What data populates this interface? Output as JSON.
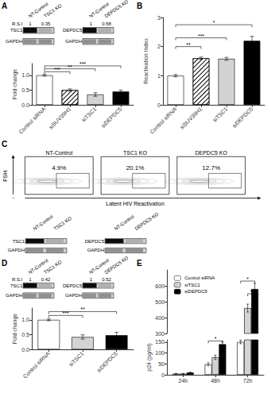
{
  "chart_data": [
    {
      "type": "blot",
      "title": "A",
      "categories": [
        "NT-Control",
        "TSC1 KO",
        "NT-Control",
        "DEPDC5 KO"
      ],
      "values": [
        1,
        0.35,
        1,
        0.58
      ],
      "ylabel": "R.S.I",
      "annotations": [
        "TSC1",
        "GAPDH",
        "DEPDC5",
        "GAPDH"
      ]
    },
    {
      "type": "bar",
      "categories": [
        "Control siRNA",
        "siSUV39H1",
        "siTSC1",
        "siDEPDC5"
      ],
      "values": [
        1.0,
        0.5,
        0.35,
        0.45
      ],
      "errors": [
        0.03,
        0.04,
        0.06,
        0.05
      ],
      "colors": [
        "white",
        "none",
        "lightgray",
        "black"
      ],
      "ylabel": "Fold change",
      "ylim": [
        0,
        1.4
      ],
      "yticks": [
        {
          "value": 0,
          "label": "0.0"
        },
        0.5,
        {
          "value": 1,
          "label": "1.0"
        }
      ],
      "grid": false,
      "annotations": [
        {
          "text": "***",
          "x1": "Control siRNA",
          "x2": "siSUV39H1",
          "y": 1.12
        },
        {
          "text": "**",
          "x1": "Control siRNA",
          "x2": "siTSC1",
          "y": 1.22
        },
        {
          "text": "***",
          "x1": "Control siRNA",
          "x2": "siDEPDC5",
          "y": 1.32
        }
      ]
    },
    {
      "type": "bar",
      "title": "B",
      "categories": [
        "Control siRNA",
        "siSUV39H1",
        "siTSC1",
        "siDEPDC5"
      ],
      "values": [
        1.0,
        1.6,
        1.58,
        2.2
      ],
      "errors": [
        0.04,
        0.04,
        0.05,
        0.15
      ],
      "colors": [
        "white",
        "none",
        "lightgray",
        "black"
      ],
      "ylabel": "Reactivation Index",
      "ylim": [
        0,
        3.0
      ],
      "yticks": [
        0,
        1,
        2,
        3
      ],
      "grid": false,
      "annotations": [
        {
          "text": "**",
          "x1": "Control siRNA",
          "x2": "siSUV39H1",
          "y": 2.0
        },
        {
          "text": "***",
          "x1": "Control siRNA",
          "x2": "siTSC1",
          "y": 2.3
        },
        {
          "text": "*",
          "x1": "Control siRNA",
          "x2": "siDEPDC5",
          "y": 2.75
        }
      ]
    },
    {
      "type": "flow",
      "title": "C",
      "categories": [
        "NT-Control",
        "TSC1 KO",
        "DEPDC5 KO"
      ],
      "annotations": [
        "4.9%",
        "20.1%",
        "12.7%",
        "-"
      ],
      "xlabel": "Latent HIV Reactivation",
      "ylabel": "FSH"
    },
    {
      "type": "blot",
      "categories": [
        "NT-Control",
        "TSC1 KO",
        "NT-Control",
        "DEPDC5 KO"
      ],
      "annotations": [
        "TSC1",
        "GAPDH",
        "DEPDC5",
        "GAPDH"
      ]
    },
    {
      "type": "blot",
      "title": "D",
      "categories": [
        "NT-Control",
        "TSC1 KO",
        "NT-Control",
        "DEPDC5 KO"
      ],
      "values": [
        1,
        0.42,
        1,
        0.52
      ],
      "ylabel": "R.S.I",
      "annotations": [
        "TSC1",
        "GAPDH",
        "DEPDC5",
        "GAPDH"
      ]
    },
    {
      "type": "bar",
      "categories": [
        "Control siRNA",
        "siTSC1",
        "siDEPDC5"
      ],
      "values": [
        1.0,
        0.42,
        0.48
      ],
      "errors": [
        0.03,
        0.07,
        0.1
      ],
      "colors": [
        "white",
        "lightgray",
        "black"
      ],
      "ylabel": "Fold change",
      "ylim": [
        0,
        1.4
      ],
      "yticks": [
        {
          "value": 0,
          "label": "0.0"
        },
        0.5,
        {
          "value": 1,
          "label": "1.0"
        }
      ],
      "grid": false,
      "annotations": [
        {
          "text": "***",
          "x1": "Control siRNA",
          "x2": "siTSC1",
          "y": 1.15
        },
        {
          "text": "**",
          "x1": "Control siRNA",
          "x2": "siDEPDC5",
          "y": 1.28
        }
      ]
    },
    {
      "type": "bar",
      "title": "E",
      "categories": [
        "24h",
        "48h",
        "72h"
      ],
      "series": [
        {
          "name": "Control siRNA",
          "color": "white",
          "values": [
            5,
            48,
            150
          ],
          "errors": [
            1.5,
            7,
            8
          ]
        },
        {
          "name": "siTSC1",
          "color": "lightgray",
          "values": [
            5,
            80,
            460
          ],
          "errors": [
            1.5,
            10,
            25
          ]
        },
        {
          "name": "siDEPDC5",
          "color": "black",
          "values": [
            10,
            140,
            580
          ],
          "errors": [
            2,
            12,
            35
          ]
        }
      ],
      "ylabel": "p24 (pg/ml)",
      "ylim": [
        [
          0,
          160
        ],
        [
          300,
          700
        ]
      ],
      "yticks": [
        [
          0,
          50,
          100,
          150
        ],
        [
          300,
          400,
          500,
          600
        ]
      ],
      "legend": "upper left",
      "grid": false,
      "annotations": [
        {
          "text": "*",
          "category": "48h",
          "x1": "Control siRNA",
          "x2": "siDEPDC5",
          "y": 155
        },
        {
          "text": "*",
          "category": "72h",
          "x1": "siTSC1",
          "x2": "siDEPDC5",
          "y": 550
        },
        {
          "text": "*",
          "category": "72h",
          "x1": "Control siRNA",
          "x2": "siDEPDC5",
          "y": 630
        }
      ]
    }
  ]
}
